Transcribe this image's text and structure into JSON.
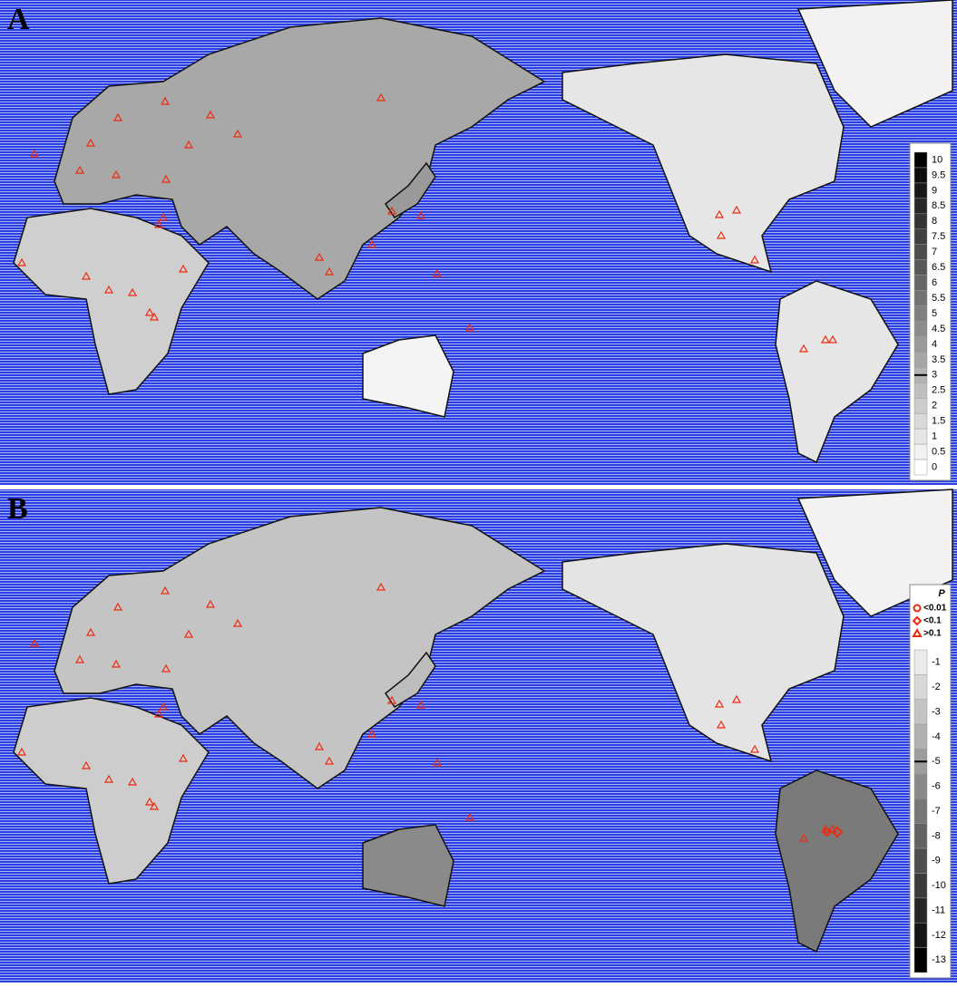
{
  "panels": [
    {
      "label": "A",
      "legend": {
        "levels": [
          10,
          9.5,
          9,
          8.5,
          8,
          7.5,
          7,
          6.5,
          6,
          5.5,
          5,
          4.5,
          4,
          3.5,
          3,
          2.5,
          2,
          1.5,
          1,
          0.5,
          0
        ],
        "bold_level": 3
      }
    },
    {
      "label": "B",
      "legend": {
        "title": "P",
        "symbols": [
          {
            "label": "<0.01",
            "shape": "circle"
          },
          {
            "label": "<0.1",
            "shape": "diamond"
          },
          {
            "label": ">0.1",
            "shape": "triangle"
          }
        ],
        "levels": [
          -1,
          -2,
          -3,
          -4,
          -5,
          -6,
          -7,
          -8,
          -9,
          -10,
          -11,
          -12,
          -13
        ],
        "bold_level": -5
      }
    }
  ]
}
